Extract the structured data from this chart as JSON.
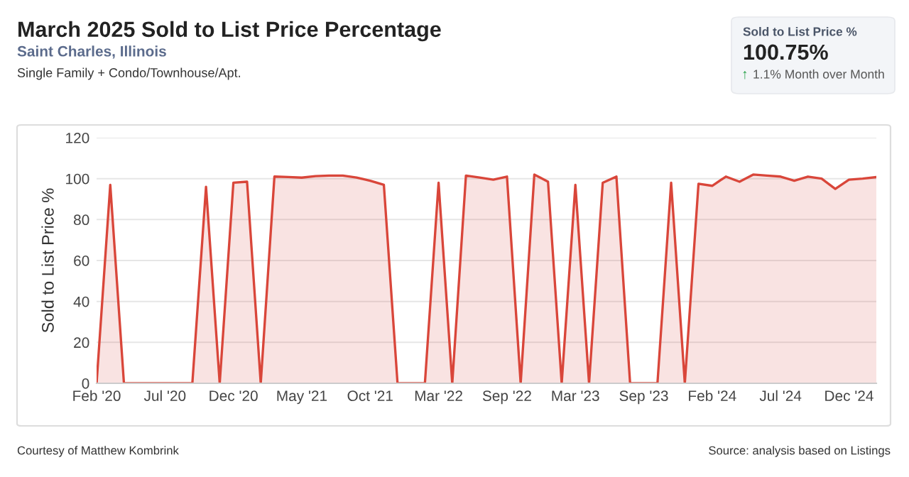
{
  "chart_data": {
    "type": "area",
    "title": "March 2025 Sold to List Price Percentage",
    "subtitle": "Saint Charles, Illinois",
    "ylabel": "Sold to List Price %",
    "annotations": [
      "Single Family + Condo/Townhouse/Apt.",
      "Sold to List Price %",
      "100.75%",
      "↑",
      "1.1% Month over Month",
      "Courtesy of Matthew Kombrink",
      "Source: analysis based on Listings"
    ],
    "categories": [
      "Feb '20",
      null,
      null,
      null,
      null,
      "Jul '20",
      null,
      null,
      null,
      null,
      "Dec '20",
      null,
      null,
      null,
      null,
      "May '21",
      null,
      null,
      null,
      null,
      "Oct '21",
      null,
      null,
      null,
      null,
      "Mar '22",
      null,
      null,
      null,
      null,
      "Sep '22",
      null,
      null,
      null,
      null,
      "Mar '23",
      null,
      null,
      null,
      null,
      "Sep '23",
      null,
      null,
      null,
      null,
      "Feb '24",
      null,
      null,
      null,
      null,
      "Jul '24",
      null,
      null,
      null,
      null,
      "Dec '24",
      null,
      null
    ],
    "series": [
      {
        "color": "#d9463a",
        "values": [
          0,
          97,
          0,
          0,
          0,
          0,
          0,
          0,
          96,
          0,
          98,
          98.5,
          0,
          101,
          100.8,
          100.5,
          101.2,
          101.5,
          101.5,
          100.5,
          99,
          97,
          0,
          0,
          0,
          98,
          0,
          101.5,
          100.5,
          99.5,
          101,
          0,
          102,
          98.5,
          0,
          97,
          0,
          98,
          101,
          0,
          0,
          0,
          98,
          0,
          97.5,
          96.5,
          101,
          98.5,
          102,
          101.5,
          101,
          99,
          101,
          100,
          95,
          99.5,
          100,
          100.75
        ]
      }
    ],
    "ylim": [
      0,
      120
    ],
    "yticks": [
      0,
      20,
      40,
      60,
      80,
      100,
      120
    ],
    "grid": "y"
  }
}
